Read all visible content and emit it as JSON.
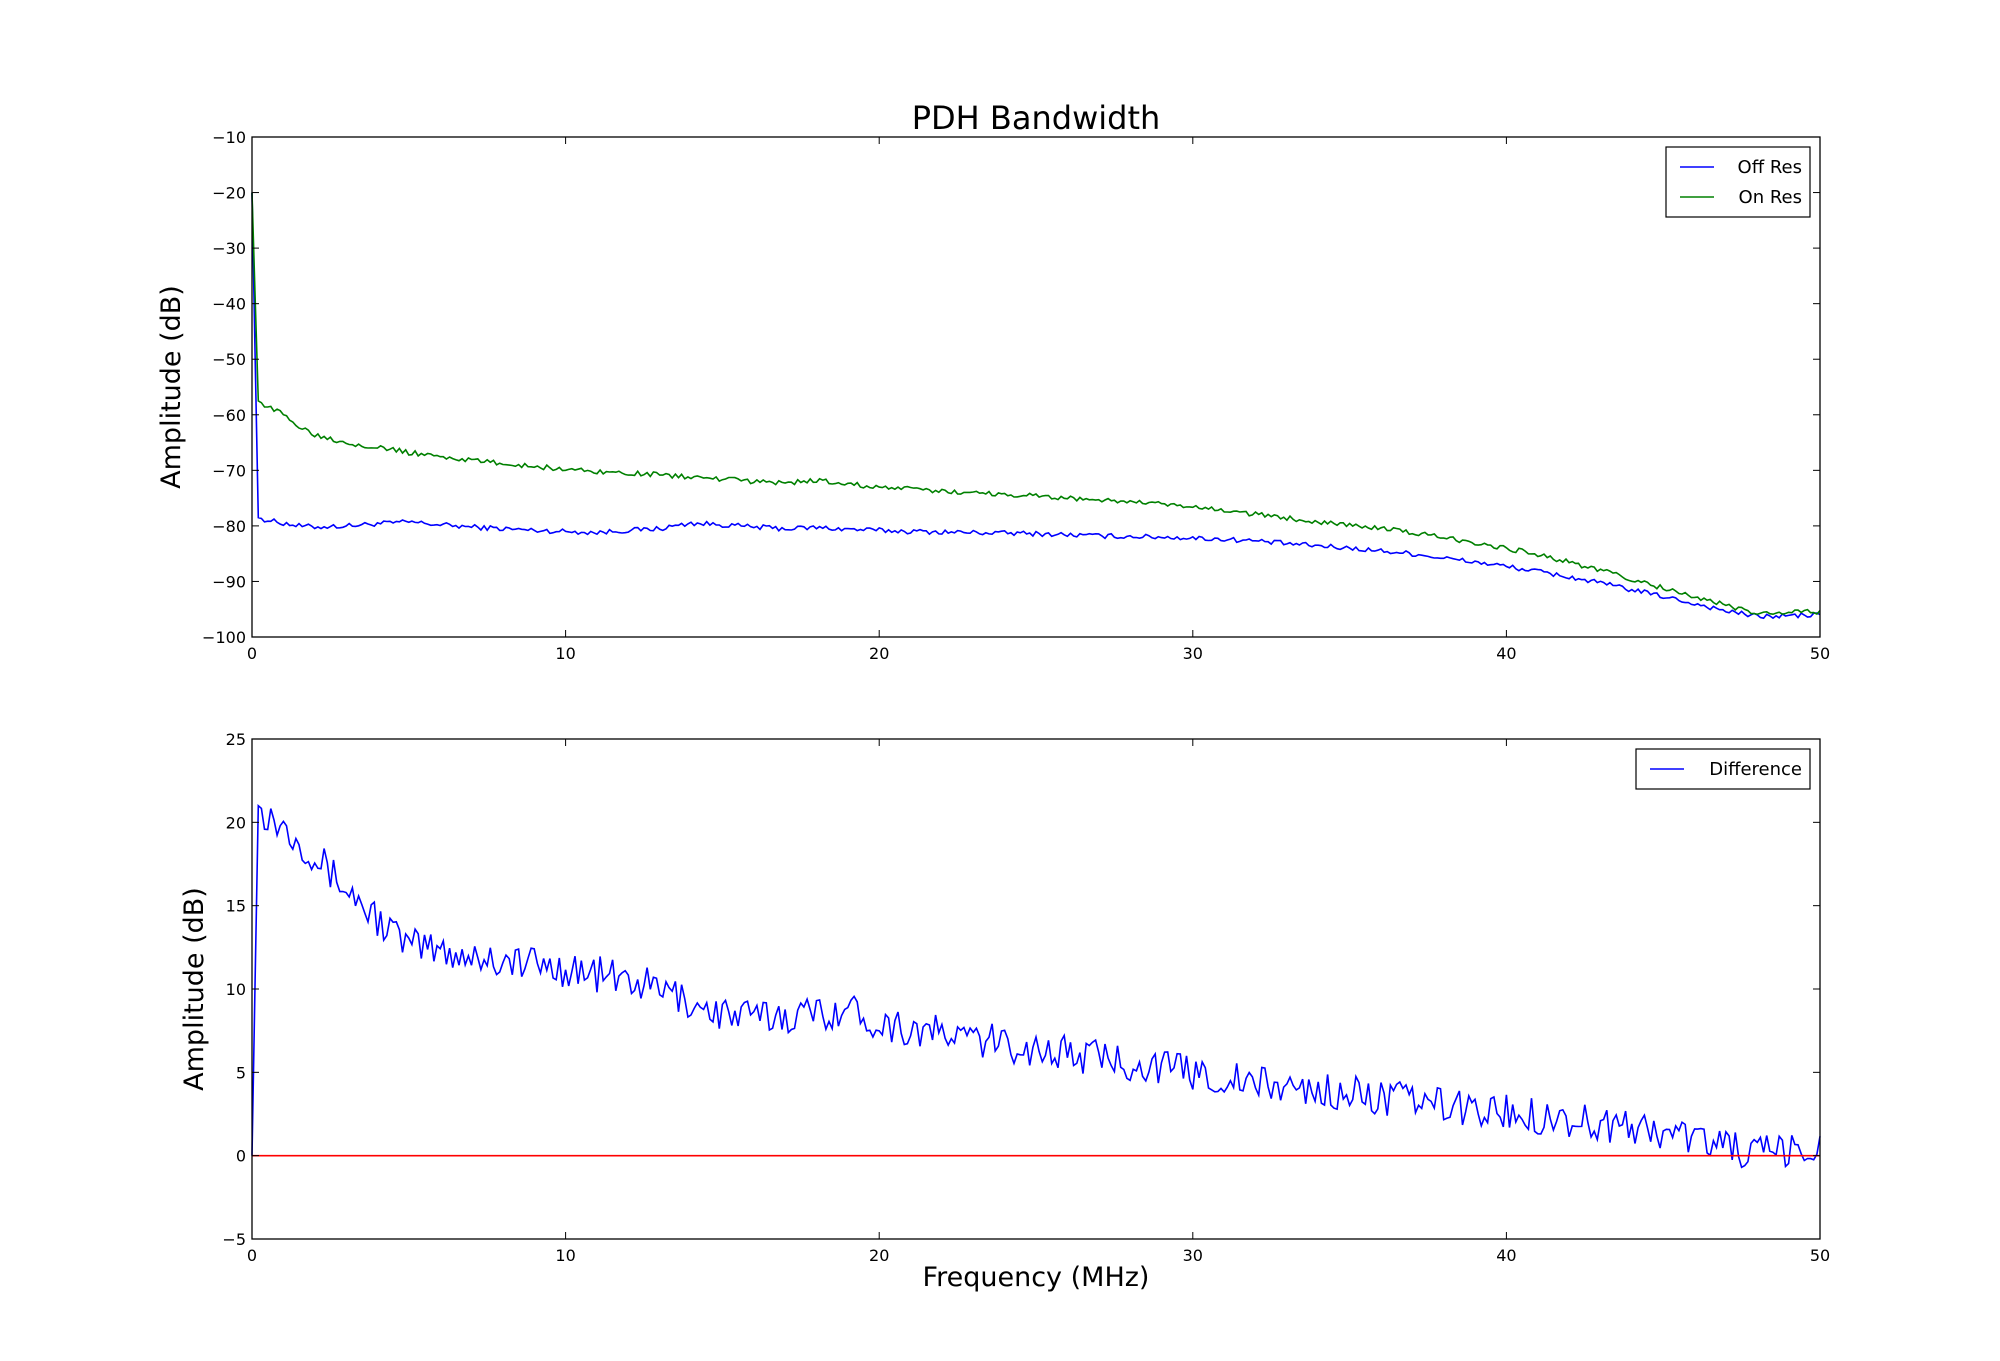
{
  "chart_data": [
    {
      "type": "line",
      "title": "PDH Bandwidth",
      "xlabel": "",
      "ylabel": "Amplitude (dB)",
      "xlim": [
        0,
        50
      ],
      "ylim": [
        -100,
        -10
      ],
      "xticks": [
        "0",
        "10",
        "20",
        "30",
        "40",
        "50"
      ],
      "yticks": [
        "−10",
        "−20",
        "−30",
        "−40",
        "−50",
        "−60",
        "−70",
        "−80",
        "−90",
        "−100"
      ],
      "grid": false,
      "legend_position": "top-right",
      "x": [
        0,
        0.2,
        0.5,
        1,
        1.5,
        2,
        3,
        4,
        5,
        6,
        7,
        8,
        9,
        10,
        11,
        12,
        13,
        14,
        15,
        16,
        17,
        18,
        19,
        20,
        21,
        22,
        23,
        24,
        25,
        26,
        27,
        28,
        29,
        30,
        31,
        32,
        33,
        34,
        35,
        36,
        37,
        38,
        39,
        40,
        41,
        42,
        43,
        44,
        45,
        46,
        47,
        48,
        49,
        50
      ],
      "series": [
        {
          "name": "Off Res",
          "color": "#0000ff",
          "values": [
            -20,
            -78.5,
            -79,
            -79.5,
            -80,
            -80.2,
            -80,
            -79.6,
            -79.3,
            -79.8,
            -80.2,
            -80.5,
            -80.8,
            -81,
            -81.2,
            -80.8,
            -80.5,
            -79.5,
            -79.8,
            -80.2,
            -80.5,
            -80.3,
            -80.6,
            -80.8,
            -81,
            -81.1,
            -81.2,
            -81.3,
            -81.4,
            -81.6,
            -81.8,
            -81.9,
            -82,
            -82.2,
            -82.4,
            -82.7,
            -83.2,
            -83.6,
            -84,
            -84.5,
            -85,
            -85.8,
            -86.5,
            -87.3,
            -88.2,
            -89.2,
            -90.3,
            -91.5,
            -92.7,
            -94,
            -95.3,
            -96.3,
            -96.2,
            -96
          ]
        },
        {
          "name": "On Res",
          "color": "#008000",
          "values": [
            -20,
            -57.5,
            -58.5,
            -60,
            -62,
            -63.5,
            -65,
            -65.8,
            -66.8,
            -67.5,
            -68.2,
            -68.8,
            -69.3,
            -69.8,
            -70.2,
            -70.5,
            -70.8,
            -71.2,
            -71.6,
            -72,
            -72.3,
            -71.8,
            -72.5,
            -73,
            -73.4,
            -73.8,
            -74,
            -74.3,
            -74.6,
            -75,
            -75.3,
            -75.7,
            -76.1,
            -76.7,
            -77.2,
            -77.9,
            -78.6,
            -79.2,
            -79.8,
            -80.5,
            -81.2,
            -82.1,
            -83,
            -84,
            -85.2,
            -86.5,
            -88,
            -89.6,
            -91.2,
            -92.8,
            -94.3,
            -95.8,
            -95.6,
            -95.4
          ]
        }
      ]
    },
    {
      "type": "line",
      "title": "",
      "xlabel": "Frequency (MHz)",
      "ylabel": "Amplitude (dB)",
      "xlim": [
        0,
        50
      ],
      "ylim": [
        -5,
        25
      ],
      "xticks": [
        "0",
        "10",
        "20",
        "30",
        "40",
        "50"
      ],
      "yticks": [
        "25",
        "20",
        "15",
        "10",
        "5",
        "0",
        "−5"
      ],
      "grid": false,
      "legend_position": "top-right",
      "x": [
        0,
        0.2,
        0.5,
        1,
        1.5,
        2,
        3,
        4,
        5,
        6,
        7,
        8,
        9,
        10,
        11,
        12,
        13,
        14,
        15,
        16,
        17,
        18,
        19,
        20,
        21,
        22,
        23,
        24,
        25,
        26,
        27,
        28,
        29,
        30,
        31,
        32,
        33,
        34,
        35,
        36,
        37,
        38,
        39,
        40,
        41,
        42,
        43,
        44,
        45,
        46,
        47,
        48,
        49,
        50
      ],
      "series": [
        {
          "name": "Difference",
          "color": "#0000ff",
          "values": [
            0,
            21,
            20.5,
            19.8,
            19,
            18,
            16,
            14.2,
            12.6,
            12.3,
            12,
            11.7,
            11.5,
            11.2,
            10.9,
            10.5,
            10,
            9.2,
            8.5,
            8.3,
            8.4,
            8.6,
            8.8,
            8.0,
            7.6,
            7.3,
            7.0,
            6.7,
            6.4,
            6.1,
            5.9,
            5.6,
            5.3,
            5.0,
            4.6,
            4.3,
            4.1,
            3.9,
            3.7,
            3.5,
            3.3,
            3.0,
            2.8,
            2.6,
            2.4,
            2.2,
            1.9,
            1.7,
            1.4,
            1.1,
            0.6,
            0.1,
            0.2,
            0.3
          ]
        },
        {
          "name": "",
          "color": "#ff0000",
          "values": [
            0,
            0,
            0,
            0,
            0,
            0,
            0,
            0,
            0,
            0,
            0,
            0,
            0,
            0,
            0,
            0,
            0,
            0,
            0,
            0,
            0,
            0,
            0,
            0,
            0,
            0,
            0,
            0,
            0,
            0,
            0,
            0,
            0,
            0,
            0,
            0,
            0,
            0,
            0,
            0,
            0,
            0,
            0,
            0,
            0,
            0,
            0,
            0,
            0,
            0,
            0,
            0,
            0,
            0
          ]
        }
      ]
    }
  ]
}
